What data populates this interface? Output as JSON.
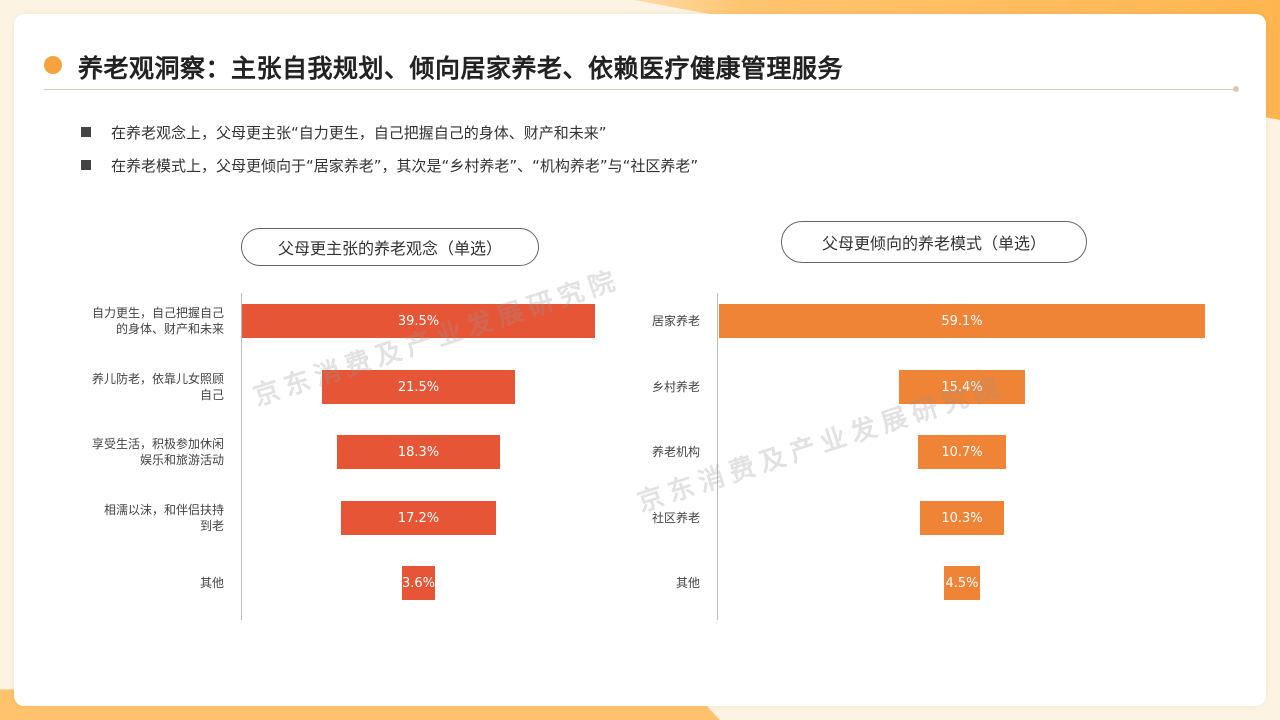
{
  "title": "养老观洞察：主张自我规划、倾向居家养老、依赖医疗健康管理服务",
  "bullets": [
    "在养老观念上，父母更主张“自力更生，自己把握自己的身体、财产和未来”",
    "在养老模式上，父母更倾向于“居家养老”，其次是“乡村养老”、“机构养老”与“社区养老”"
  ],
  "watermark": "京东消费及产业发展研究院",
  "chart_data": [
    {
      "type": "bar",
      "title": "父母更主张的养老观念（单选）",
      "categories": [
        "自力更生，自己把握自己的身体、财产和未来",
        "养儿防老，依靠儿女照顾自己",
        "享受生活，积极参加休闲娱乐和旅游活动",
        "相濡以沫，和伴侣扶持到老",
        "其他"
      ],
      "category_lines": [
        [
          "自力更生，自己把握自己",
          "的身体、财产和未来"
        ],
        [
          "养儿防老，依靠儿女照顾",
          "自己"
        ],
        [
          "享受生活，积极参加休闲",
          "娱乐和旅游活动"
        ],
        [
          "相濡以沫，和伴侣扶持",
          "到老"
        ],
        [
          "其他"
        ]
      ],
      "values": [
        39.5,
        21.5,
        18.3,
        17.2,
        3.6
      ],
      "labels": [
        "39.5%",
        "21.5%",
        "18.3%",
        "17.2%",
        "3.6%"
      ],
      "color": "#e65536",
      "orientation": "horizontal-funnel"
    },
    {
      "type": "bar",
      "title": "父母更倾向的养老模式（单选）",
      "categories": [
        "居家养老",
        "乡村养老",
        "养老机构",
        "社区养老",
        "其他"
      ],
      "category_lines": [
        [
          "居家养老"
        ],
        [
          "乡村养老"
        ],
        [
          "养老机构"
        ],
        [
          "社区养老"
        ],
        [
          "其他"
        ]
      ],
      "values": [
        59.1,
        15.4,
        10.7,
        10.3,
        4.5
      ],
      "labels": [
        "59.1%",
        "15.4%",
        "10.7%",
        "10.3%",
        "4.5%"
      ],
      "color": "#ef8336",
      "orientation": "horizontal-funnel"
    }
  ]
}
